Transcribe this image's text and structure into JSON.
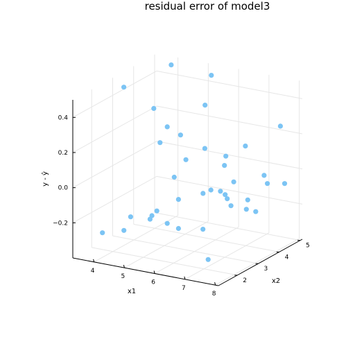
{
  "chart_data": {
    "type": "scatter",
    "title": "residual error of model3",
    "xlabel": "x1",
    "ylabel": "x2",
    "zlabel": "y - ŷ",
    "x_ticks": [
      4,
      5,
      6,
      7,
      8
    ],
    "y_ticks": [
      2,
      3,
      4,
      5
    ],
    "z_ticks": [
      -0.2,
      0.0,
      0.2,
      0.4
    ],
    "z_tick_labels": [
      "−0.2",
      "0.0",
      "0.2",
      "0.4"
    ],
    "xlim": [
      3.3,
      8.1
    ],
    "ylim": [
      1.1,
      5.1
    ],
    "zlim": [
      -0.4,
      0.5
    ],
    "grid": true,
    "legend": "none",
    "marker_color": "#7cc4f4",
    "points": [
      {
        "x": 4.0,
        "y": 1.5,
        "z": -0.26
      },
      {
        "x": 4.5,
        "y": 1.8,
        "z": -0.25
      },
      {
        "x": 5.1,
        "y": 3.0,
        "z": -0.27
      },
      {
        "x": 5.4,
        "y": 3.1,
        "z": -0.13
      },
      {
        "x": 6.0,
        "y": 3.4,
        "z": -0.3
      },
      {
        "x": 6.3,
        "y": 3.8,
        "z": -0.1
      },
      {
        "x": 6.6,
        "y": 4.0,
        "z": -0.05
      },
      {
        "x": 5.0,
        "y": 1.4,
        "z": -0.13
      },
      {
        "x": 5.5,
        "y": 1.6,
        "z": -0.14
      },
      {
        "x": 7.0,
        "y": 2.2,
        "z": -0.36
      },
      {
        "x": 5.9,
        "y": 1.2,
        "z": 0.53
      },
      {
        "x": 3.6,
        "y": 3.1,
        "z": 0.45
      },
      {
        "x": 4.4,
        "y": 4.2,
        "z": 0.53
      },
      {
        "x": 6.0,
        "y": 3.8,
        "z": 0.55
      },
      {
        "x": 5.1,
        "y": 3.0,
        "z": 0.28
      },
      {
        "x": 6.0,
        "y": 3.5,
        "z": 0.4
      },
      {
        "x": 5.0,
        "y": 2.8,
        "z": 0.2
      },
      {
        "x": 6.2,
        "y": 3.2,
        "z": 0.18
      },
      {
        "x": 5.4,
        "y": 2.9,
        "z": 0.01
      },
      {
        "x": 6.2,
        "y": 4.2,
        "z": 0.07
      },
      {
        "x": 5.3,
        "y": 3.6,
        "z": 0.06
      },
      {
        "x": 5.4,
        "y": 3.2,
        "z": 0.23
      },
      {
        "x": 6.5,
        "y": 3.7,
        "z": 0.06
      },
      {
        "x": 6.4,
        "y": 3.2,
        "z": -0.05
      },
      {
        "x": 6.8,
        "y": 3.3,
        "z": -0.07
      },
      {
        "x": 6.8,
        "y": 3.4,
        "z": -0.1
      },
      {
        "x": 7.2,
        "y": 3.8,
        "z": -0.12
      },
      {
        "x": 7.5,
        "y": 4.3,
        "z": -0.05
      },
      {
        "x": 7.2,
        "y": 3.0,
        "z": -0.1
      },
      {
        "x": 7.5,
        "y": 3.3,
        "z": -0.13
      },
      {
        "x": 7.6,
        "y": 3.6,
        "z": -0.16
      },
      {
        "x": 8.0,
        "y": 4.4,
        "z": -0.04
      },
      {
        "x": 7.6,
        "y": 4.0,
        "z": 0.02
      },
      {
        "x": 5.7,
        "y": 1.4,
        "z": -0.1
      },
      {
        "x": 6.0,
        "y": 1.2,
        "z": -0.05
      },
      {
        "x": 6.3,
        "y": 1.8,
        "z": -0.18
      },
      {
        "x": 6.9,
        "y": 2.1,
        "z": 0.02
      },
      {
        "x": 7.4,
        "y": 3.4,
        "z": 0.22
      },
      {
        "x": 8.0,
        "y": 4.2,
        "z": 0.3
      }
    ]
  }
}
